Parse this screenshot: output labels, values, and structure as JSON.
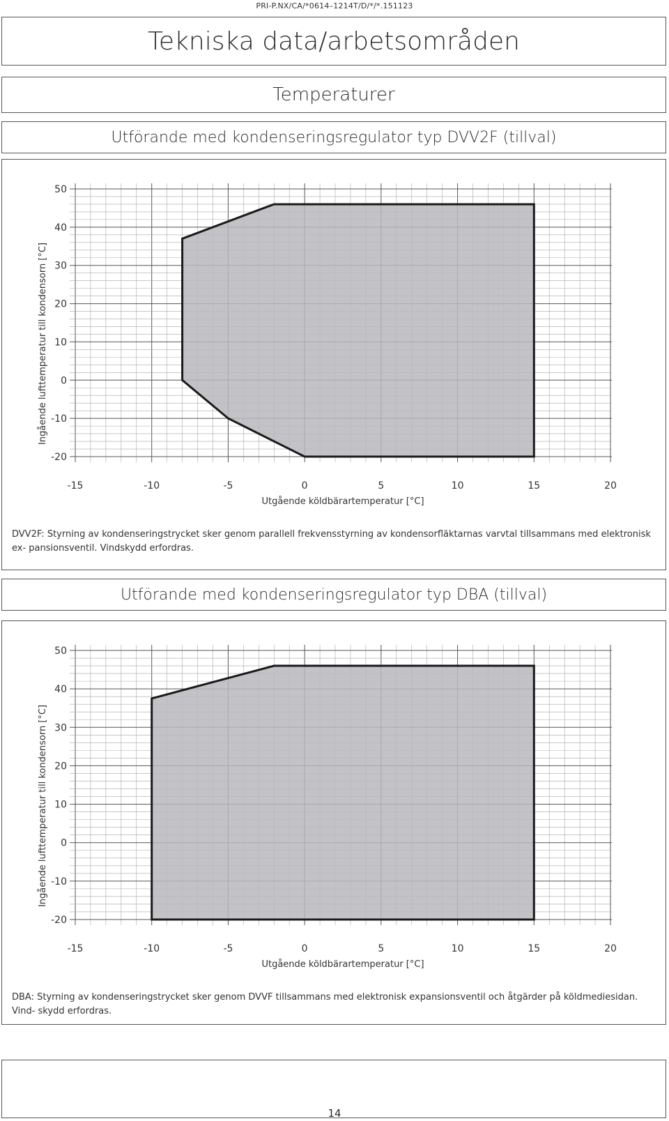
{
  "header": {
    "doc_code": "PRI-P.NX/CA/*0614–1214T/D/*/*.151123"
  },
  "page_title": "Tekniska data/arbetsområden",
  "section_title": "Temperaturer",
  "charts": [
    {
      "heading": "Utförande med kondenseringsregulator typ DVV2F (tillval)",
      "note": "DVV2F: Styrning av kondenseringstrycket sker genom parallell frekvensstyrning av kondensorfläktarnas varvtal tillsammans med elektronisk ex- pansionsventil. Vindskydd erfordras."
    },
    {
      "heading": "Utförande med kondenseringsregulator typ DBA (tillval)",
      "note": "DBA: Styrning av kondenseringstrycket sker genom DVVF tillsammans med elektronisk expansionsventil och åtgärder på köldmediesidan. Vind- skydd erfordras."
    }
  ],
  "chart_data": [
    {
      "type": "area",
      "xlabel": "Utgående köldbärartemperatur [°C]",
      "ylabel": "Ingående lufttemperatur till kondensorn [°C]",
      "xlim": [
        -15,
        20
      ],
      "ylim": [
        -20,
        50
      ],
      "x_ticks": [
        "-15",
        "-10",
        "-5",
        "0",
        "5",
        "10",
        "15",
        "20"
      ],
      "y_ticks": [
        "50",
        "40",
        "30",
        "20",
        "10",
        "0",
        "-10",
        "-20"
      ],
      "grid": true,
      "polygon": [
        [
          -8,
          37
        ],
        [
          -2,
          46
        ],
        [
          15,
          46
        ],
        [
          15,
          -20
        ],
        [
          0,
          -20
        ],
        [
          -5,
          -10
        ],
        [
          -8,
          0
        ]
      ]
    },
    {
      "type": "area",
      "xlabel": "Utgående köldbärartemperatur [°C]",
      "ylabel": "Ingående lufttemperatur till kondensorn [°C]",
      "xlim": [
        -15,
        20
      ],
      "ylim": [
        -20,
        50
      ],
      "x_ticks": [
        "-15",
        "-10",
        "-5",
        "0",
        "5",
        "10",
        "15",
        "20"
      ],
      "y_ticks": [
        "50",
        "40",
        "30",
        "20",
        "10",
        "0",
        "-10",
        "-20"
      ],
      "grid": true,
      "polygon": [
        [
          -10,
          37.5
        ],
        [
          -2,
          46
        ],
        [
          15,
          46
        ],
        [
          15,
          -20
        ],
        [
          -10,
          -20
        ]
      ]
    }
  ],
  "colors": {
    "area_fill": "#b9b9bd",
    "area_stroke": "#1a1a1a",
    "grid": "#a8a8a8",
    "grid_major": "#555555"
  },
  "footer": {
    "page_number": "14"
  }
}
